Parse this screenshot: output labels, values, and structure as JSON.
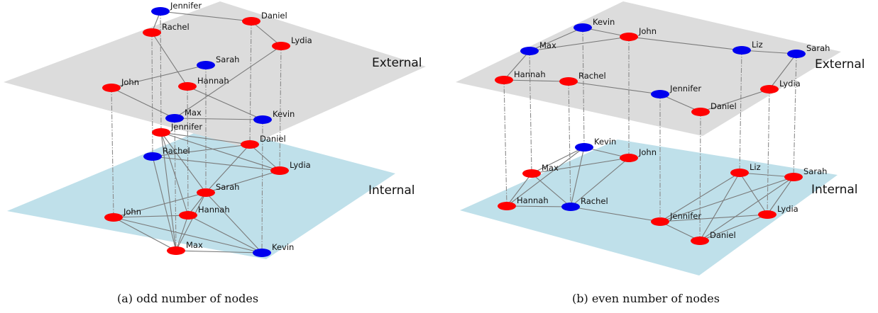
{
  "colors": {
    "red": "#ff0000",
    "blue": "#0000ee",
    "external_plane": "#dcdcdc",
    "internal_plane": "#bfe0ea"
  },
  "panels": [
    {
      "caption": "(a) odd number of nodes",
      "external_label": "External",
      "internal_label": "Internal",
      "external": {
        "nodes": [
          {
            "name": "Jennifer",
            "color": "blue"
          },
          {
            "name": "Daniel",
            "color": "red"
          },
          {
            "name": "Rachel",
            "color": "red"
          },
          {
            "name": "Lydia",
            "color": "red"
          },
          {
            "name": "Sarah",
            "color": "blue"
          },
          {
            "name": "John",
            "color": "red"
          },
          {
            "name": "Hannah",
            "color": "red"
          },
          {
            "name": "Max",
            "color": "blue"
          },
          {
            "name": "Kevin",
            "color": "blue"
          }
        ],
        "edges": [
          [
            "Jennifer",
            "Daniel"
          ],
          [
            "Daniel",
            "Lydia"
          ],
          [
            "Rachel",
            "Jennifer"
          ],
          [
            "Rachel",
            "Hannah"
          ],
          [
            "Sarah",
            "John"
          ],
          [
            "John",
            "Max"
          ],
          [
            "Hannah",
            "Kevin"
          ],
          [
            "Max",
            "Kevin"
          ],
          [
            "Lydia",
            "Max"
          ]
        ]
      },
      "internal": {
        "nodes": [
          {
            "name": "Jennifer",
            "color": "red"
          },
          {
            "name": "Daniel",
            "color": "red"
          },
          {
            "name": "Rachel",
            "color": "blue"
          },
          {
            "name": "Lydia",
            "color": "red"
          },
          {
            "name": "Sarah",
            "color": "red"
          },
          {
            "name": "John",
            "color": "red"
          },
          {
            "name": "Hannah",
            "color": "red"
          },
          {
            "name": "Max",
            "color": "red"
          },
          {
            "name": "Kevin",
            "color": "blue"
          }
        ],
        "edges": [
          [
            "Jennifer",
            "Daniel"
          ],
          [
            "Jennifer",
            "Lydia"
          ],
          [
            "Jennifer",
            "Sarah"
          ],
          [
            "Jennifer",
            "Max"
          ],
          [
            "Jennifer",
            "Hannah"
          ],
          [
            "Rachel",
            "Daniel"
          ],
          [
            "Rachel",
            "Lydia"
          ],
          [
            "Rachel",
            "Max"
          ],
          [
            "Daniel",
            "Sarah"
          ],
          [
            "Daniel",
            "Lydia"
          ],
          [
            "Lydia",
            "Sarah"
          ],
          [
            "Sarah",
            "John"
          ],
          [
            "Sarah",
            "Hannah"
          ],
          [
            "Sarah",
            "Max"
          ],
          [
            "Sarah",
            "Kevin"
          ],
          [
            "John",
            "Hannah"
          ],
          [
            "John",
            "Max"
          ],
          [
            "John",
            "Kevin"
          ],
          [
            "Hannah",
            "Max"
          ],
          [
            "Hannah",
            "Kevin"
          ],
          [
            "Max",
            "Kevin"
          ]
        ]
      }
    },
    {
      "caption": "(b) even number of nodes",
      "external_label": "External",
      "internal_label": "Internal",
      "external": {
        "nodes": [
          {
            "name": "Kevin",
            "color": "blue"
          },
          {
            "name": "John",
            "color": "red"
          },
          {
            "name": "Max",
            "color": "blue"
          },
          {
            "name": "Liz",
            "color": "blue"
          },
          {
            "name": "Sarah",
            "color": "blue"
          },
          {
            "name": "Hannah",
            "color": "red"
          },
          {
            "name": "Rachel",
            "color": "red"
          },
          {
            "name": "Lydia",
            "color": "red"
          },
          {
            "name": "Jennifer",
            "color": "blue"
          },
          {
            "name": "Daniel",
            "color": "red"
          }
        ],
        "edges": [
          [
            "Kevin",
            "Max"
          ],
          [
            "Kevin",
            "John"
          ],
          [
            "Max",
            "John"
          ],
          [
            "Max",
            "Hannah"
          ],
          [
            "John",
            "Liz"
          ],
          [
            "Liz",
            "Sarah"
          ],
          [
            "Sarah",
            "Lydia"
          ],
          [
            "Lydia",
            "Daniel"
          ],
          [
            "Daniel",
            "Jennifer"
          ],
          [
            "Hannah",
            "Rachel"
          ],
          [
            "Rachel",
            "Jennifer"
          ]
        ]
      },
      "internal": {
        "nodes": [
          {
            "name": "Kevin",
            "color": "blue"
          },
          {
            "name": "John",
            "color": "red"
          },
          {
            "name": "Max",
            "color": "red"
          },
          {
            "name": "Liz",
            "color": "red"
          },
          {
            "name": "Sarah",
            "color": "red"
          },
          {
            "name": "Hannah",
            "color": "red"
          },
          {
            "name": "Rachel",
            "color": "blue"
          },
          {
            "name": "Jennifer",
            "color": "red"
          },
          {
            "name": "Lydia",
            "color": "red"
          },
          {
            "name": "Daniel",
            "color": "red"
          }
        ],
        "edges": [
          [
            "Kevin",
            "Max"
          ],
          [
            "Kevin",
            "John"
          ],
          [
            "Kevin",
            "Rachel"
          ],
          [
            "Kevin",
            "Hannah"
          ],
          [
            "Max",
            "Hannah"
          ],
          [
            "Max",
            "Rachel"
          ],
          [
            "Max",
            "John"
          ],
          [
            "John",
            "Rachel"
          ],
          [
            "Hannah",
            "Rachel"
          ],
          [
            "Rachel",
            "Jennifer"
          ],
          [
            "Jennifer",
            "Daniel"
          ],
          [
            "Jennifer",
            "Liz"
          ],
          [
            "Jennifer",
            "Sarah"
          ],
          [
            "Jennifer",
            "Lydia"
          ],
          [
            "Liz",
            "Sarah"
          ],
          [
            "Liz",
            "Lydia"
          ],
          [
            "Liz",
            "Daniel"
          ],
          [
            "Sarah",
            "Lydia"
          ],
          [
            "Sarah",
            "Daniel"
          ],
          [
            "Lydia",
            "Daniel"
          ]
        ]
      }
    }
  ]
}
